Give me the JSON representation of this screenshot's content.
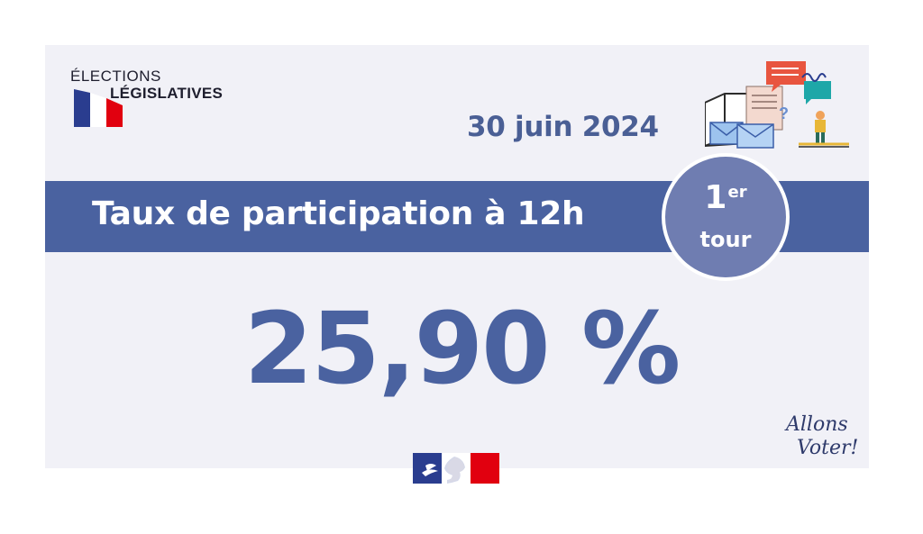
{
  "logo": {
    "line1": "ÉLECTIONS",
    "line2": "LÉGISLATIVES"
  },
  "date": "30 juin 2024",
  "band": {
    "title": "Taux de participation à 12h"
  },
  "round": {
    "number": "1",
    "suffix": "er",
    "word": "tour"
  },
  "participation_rate": "25,90 %",
  "slogan": {
    "line1": "Allons",
    "line2": "Voter!"
  },
  "colors": {
    "blue_band": "#4a62a0",
    "badge": "#6f7db1",
    "text_blue": "#4a5f95",
    "flag_blue": "#2a3d8f",
    "flag_red": "#e1000f",
    "background": "#f1f1f7"
  },
  "icons": {
    "logo_flag": "french-flag-icon",
    "illustration": "ballot-box-illustration",
    "marianne": "marianne-logo"
  }
}
